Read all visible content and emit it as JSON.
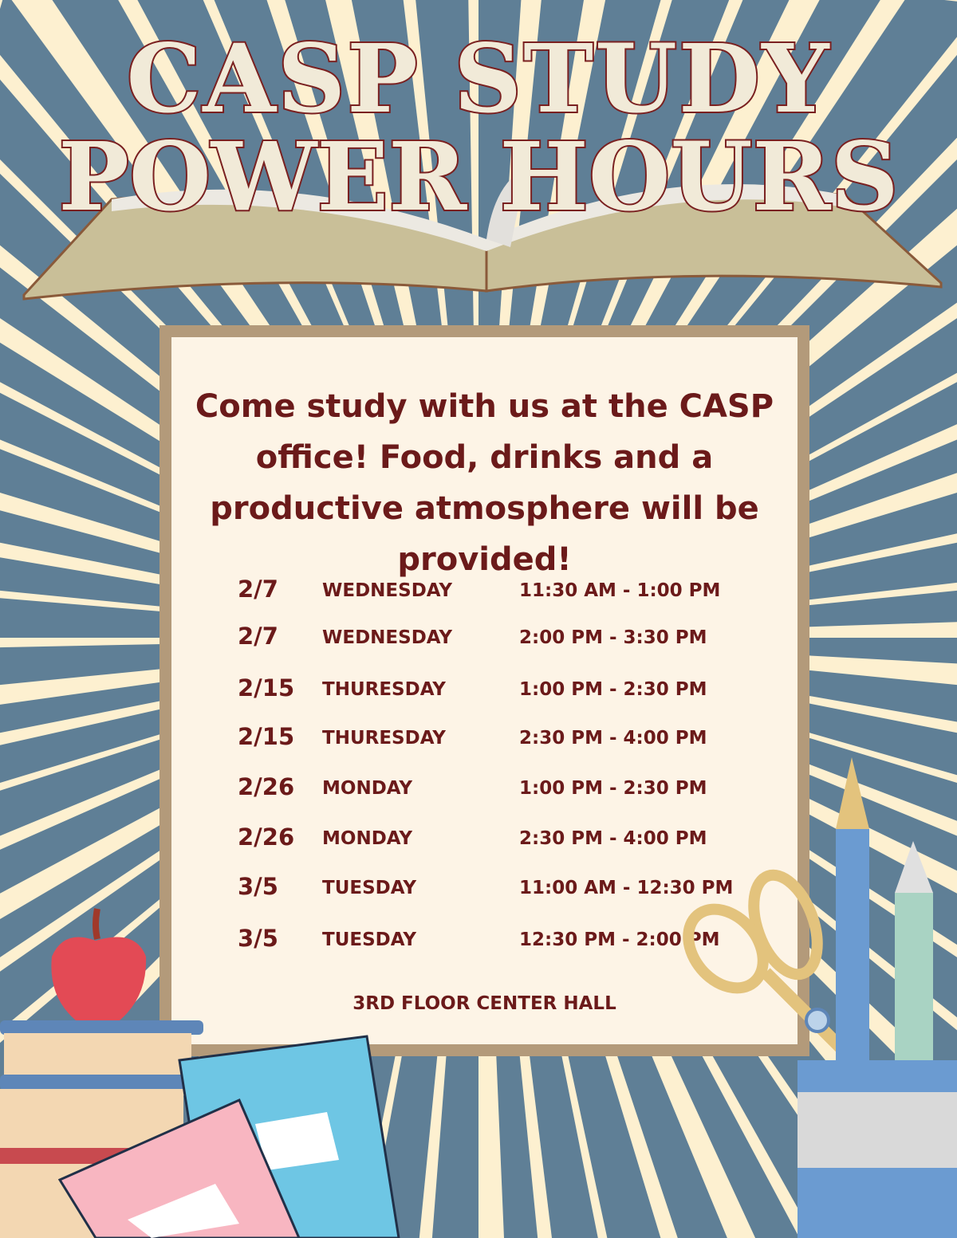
{
  "title": {
    "line1": "CASP STUDY",
    "line2": "POWER HOURS"
  },
  "intro": "Come study with us at the CASP office! Food, drinks and a productive atmosphere will be provided!",
  "schedule": [
    {
      "date": "2/7",
      "day": "WEDNESDAY",
      "time": "11:30 AM - 1:00 PM"
    },
    {
      "date": "2/7",
      "day": "WEDNESDAY",
      "time": "2:00 PM - 3:30 PM"
    },
    {
      "date": "2/15",
      "day": "THURESDAY",
      "time": "1:00 PM - 2:30 PM"
    },
    {
      "date": "2/15",
      "day": "THURESDAY",
      "time": "2:30 PM - 4:00 PM"
    },
    {
      "date": "2/26",
      "day": "MONDAY",
      "time": "1:00 PM - 2:30 PM"
    },
    {
      "date": "2/26",
      "day": "MONDAY",
      "time": "2:30 PM - 4:00 PM"
    },
    {
      "date": "3/5",
      "day": "TUESDAY",
      "time": "11:00 AM - 12:30 PM"
    },
    {
      "date": "3/5",
      "day": "TUESDAY",
      "time": "12:30 PM - 2:00 PM"
    }
  ],
  "location": "3RD FLOOR CENTER HALL",
  "colors": {
    "background_cream": "#fdf0d0",
    "rays_blue": "#5f7f96",
    "text_maroon": "#6b1a1a",
    "panel_border": "#b39a7a",
    "panel_fill": "#fdf4e6"
  },
  "icons": [
    "open-book-illustration",
    "apple-icon",
    "book-stack-icon",
    "notebook-icon",
    "scissors-icon",
    "pencil-cup-icon"
  ]
}
